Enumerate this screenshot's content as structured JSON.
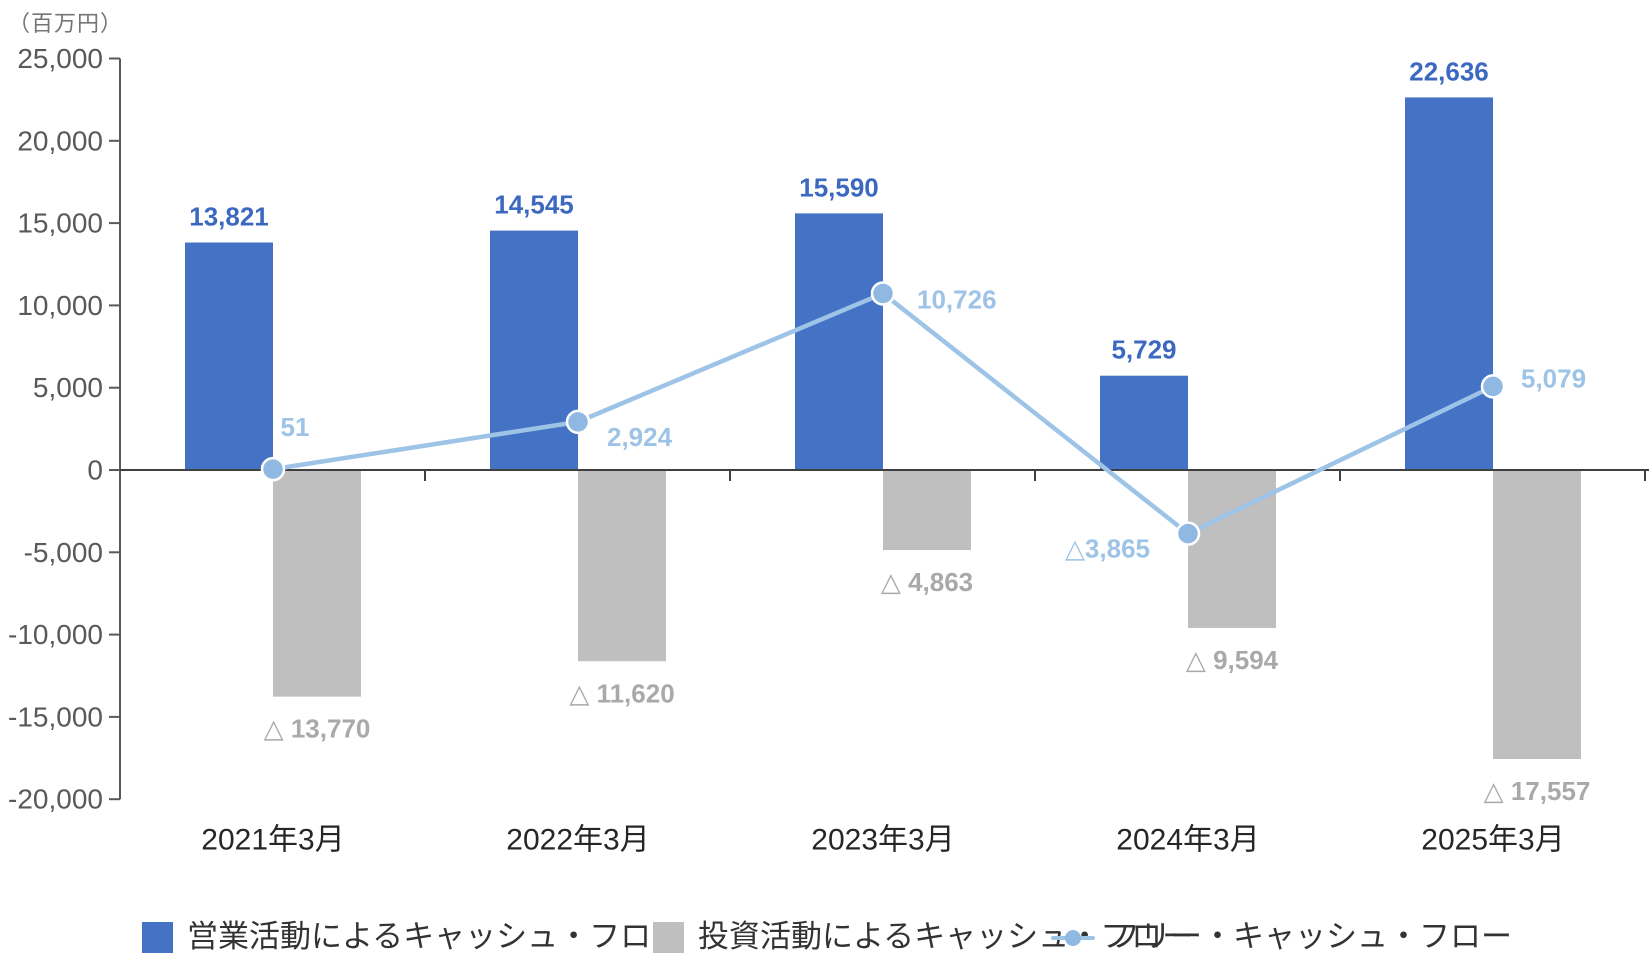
{
  "unit_label": "（百万円）",
  "colors": {
    "operating_bar": "#4472C4",
    "operating_label": "#3D68C0",
    "investing_bar": "#BFBFBF",
    "investing_label": "#A9A9A9",
    "fcf_line": "#9DC3E6",
    "fcf_marker": "#8FB9E2",
    "fcf_label": "#9DC3E6",
    "axis_line": "#595959",
    "zero_line": "#404040",
    "y_tick_label": "#595959",
    "x_tick_label": "#262626",
    "legend_text": "#333333"
  },
  "chart_data": {
    "type": "bar",
    "subtype": "bar-line-combo",
    "title": "",
    "unit_label": "（百万円）",
    "categories": [
      "2021年3月",
      "2022年3月",
      "2023年3月",
      "2024年3月",
      "2025年3月"
    ],
    "series": [
      {
        "name": "営業活動によるキャッシュ・フロー",
        "type": "bar",
        "values": [
          13821,
          14545,
          15590,
          5729,
          22636
        ],
        "data_labels": [
          "13,821",
          "14,545",
          "15,590",
          "5,729",
          "22,636"
        ]
      },
      {
        "name": "投資活動によるキャッシュ・フロー",
        "type": "bar",
        "values": [
          -13770,
          -11620,
          -4863,
          -9594,
          -17557
        ],
        "data_labels": [
          "△ 13,770",
          "△ 11,620",
          "△ 4,863",
          "△ 9,594",
          "△ 17,557"
        ]
      },
      {
        "name": "フリー・キャッシュ・フロー",
        "type": "line",
        "values": [
          51,
          2924,
          10726,
          -3865,
          5079
        ],
        "data_labels": [
          "51",
          "2,924",
          "10,726",
          "△3,865",
          "5,079"
        ]
      }
    ],
    "y_axis": {
      "min": -20000,
      "max": 25000,
      "step": 5000,
      "tick_labels": [
        "25,000",
        "20,000",
        "15,000",
        "10,000",
        "5,000",
        "0",
        "-5,000",
        "-10,000",
        "-15,000",
        "-20,000"
      ]
    },
    "grid": "off",
    "legend_position": "bottom",
    "legend": {
      "entries": [
        "営業活動によるキャッシュ・フロー",
        "投資活動によるキャッシュ・フロー",
        "フリー・キャッシュ・フロー"
      ]
    }
  }
}
